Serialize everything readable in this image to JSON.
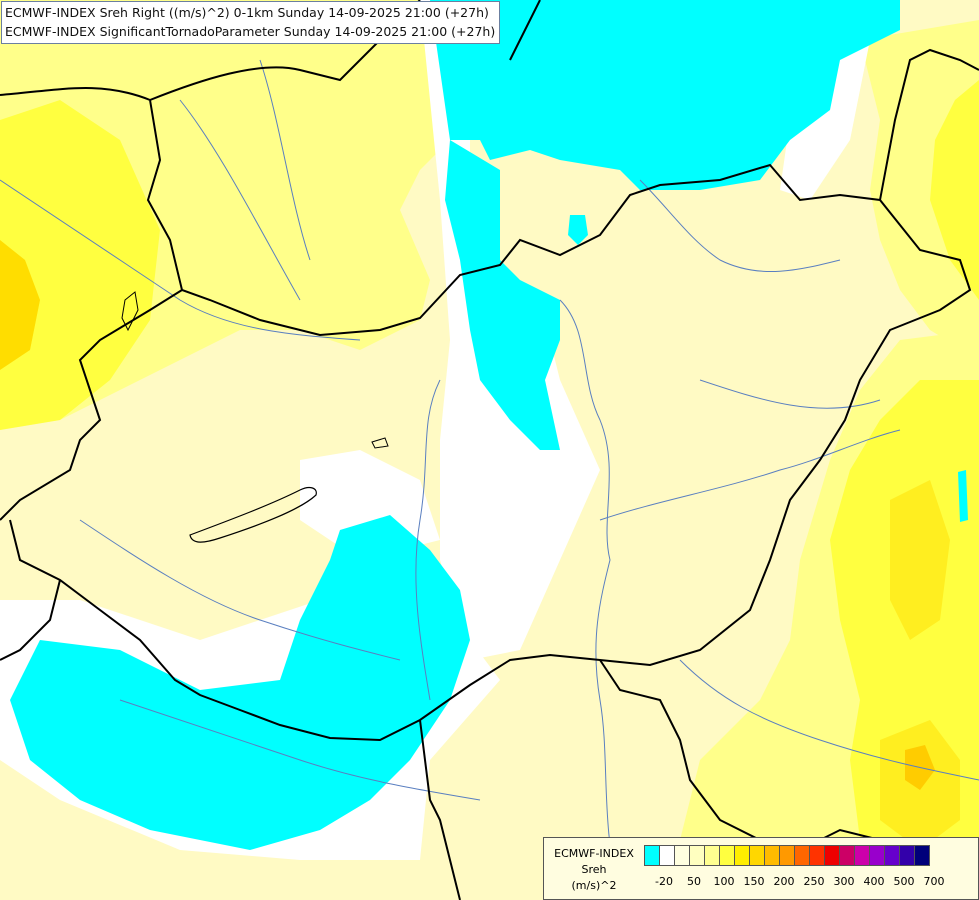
{
  "titles": {
    "line1": "ECMWF-INDEX Sreh Right ((m/s)^2) 0-1km Sunday 14-09-2025 21:00 (+27h)",
    "line2": "ECMWF-INDEX SignificantTornadoParameter Sunday 14-09-2025 21:00 (+27h)"
  },
  "map": {
    "field": "Sreh 0-1km",
    "colors": {
      "cyan": "#00ffff",
      "white": "#ffffff",
      "pale_yellow": "#ffffc0",
      "light_yellow": "#ffff80",
      "yellow": "#ffff30",
      "deep_yellow": "#ffeb00",
      "orange_yellow": "#ffcc00",
      "border": "#000000",
      "river": "#5a7fc0"
    }
  },
  "legend": {
    "line1": "ECMWF-INDEX",
    "line2": "Sreh",
    "line3": "(m/s)^2",
    "colors": [
      "#00ffff",
      "#ffffff",
      "#ffffe0",
      "#ffffc0",
      "#ffff90",
      "#ffff40",
      "#ffee00",
      "#ffd700",
      "#ffbb00",
      "#ff9900",
      "#ff6600",
      "#ff3300",
      "#ee0000",
      "#cc0066",
      "#cc00aa",
      "#9900cc",
      "#6600cc",
      "#3300aa",
      "#00007a"
    ],
    "ticks": [
      "-20",
      "50",
      "100",
      "150",
      "200",
      "250",
      "300",
      "400",
      "500",
      "700"
    ]
  }
}
